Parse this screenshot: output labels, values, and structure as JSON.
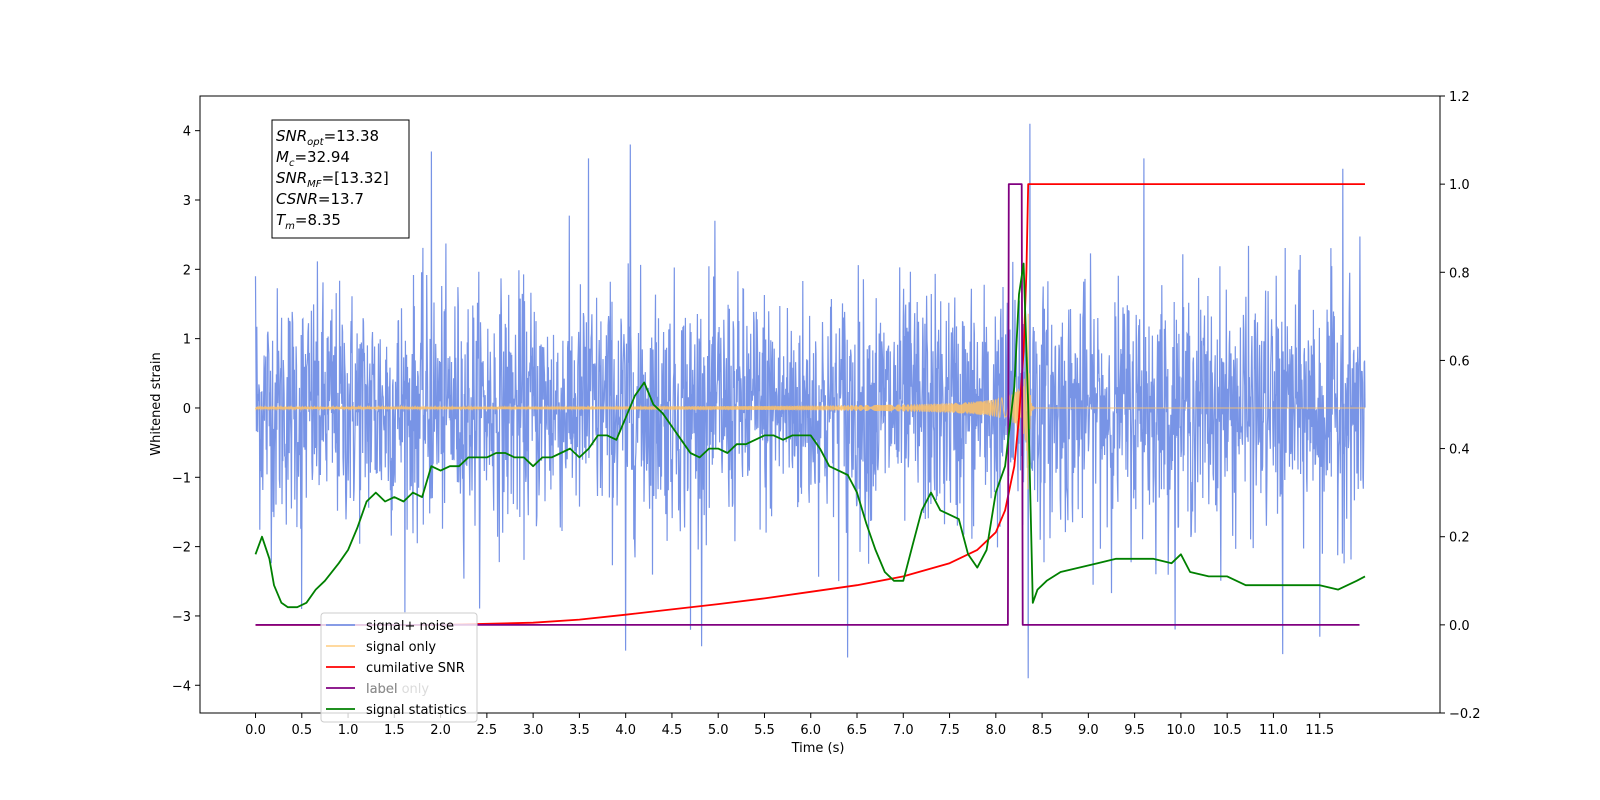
{
  "chart_data": {
    "type": "line",
    "xlabel": "Time (s)",
    "ylabel": "Whitened strain",
    "xlim": [
      -0.6,
      12.8
    ],
    "ylim": [
      -4.4,
      4.5
    ],
    "y2lim": [
      -0.2,
      1.2
    ],
    "xticks": [
      "0.0",
      "0.5",
      "1.0",
      "1.5",
      "2.0",
      "2.5",
      "3.0",
      "3.5",
      "4.0",
      "4.5",
      "5.0",
      "5.5",
      "6.0",
      "6.5",
      "7.0",
      "7.5",
      "8.0",
      "8.5",
      "9.0",
      "9.5",
      "10.0",
      "10.5",
      "11.0",
      "11.5"
    ],
    "yticks": [
      "-4",
      "-3",
      "-2",
      "-1",
      "0",
      "1",
      "2",
      "3",
      "4"
    ],
    "y2ticks": [
      "-0.2",
      "0.0",
      "0.2",
      "0.4",
      "0.6",
      "0.8",
      "1.0",
      "1.2"
    ],
    "legend_position": "lower-left",
    "annotation": {
      "lines": [
        {
          "base": "SNR",
          "sub": "opt",
          "value": "=13.38"
        },
        {
          "base": "M",
          "sub": "c",
          "value": "=32.94"
        },
        {
          "base": "SNR",
          "sub": "MF",
          "value": "=[13.32]"
        },
        {
          "base": "CSNR",
          "sub": "",
          "value": "=13.7"
        },
        {
          "base": "T",
          "sub": "m",
          "value": "=8.35"
        }
      ]
    },
    "series": [
      {
        "name": "signal+ noise",
        "axis": "left",
        "color": "#7894e6",
        "description_range": [
          -3.9,
          4.1
        ],
        "peaks": [
          [
            0.0,
            1.9
          ],
          [
            1.9,
            3.7
          ],
          [
            3.6,
            3.6
          ],
          [
            4.05,
            3.8
          ],
          [
            8.37,
            4.1
          ],
          [
            9.6,
            3.6
          ],
          [
            11.75,
            3.45
          ],
          [
            4.0,
            -3.5
          ],
          [
            6.4,
            -3.6
          ],
          [
            8.35,
            -3.95
          ],
          [
            11.1,
            -3.55
          ],
          [
            11.5,
            -3.3
          ],
          [
            4.7,
            -3.2
          ],
          [
            0.5,
            -2.9
          ]
        ],
        "noise_std": 0.85,
        "x_range": [
          0.0,
          11.99
        ]
      },
      {
        "name": "signal only",
        "axis": "left",
        "color": "#ffc266",
        "x_range": [
          0.0,
          11.99
        ],
        "chirp": {
          "merger_time": 8.35,
          "peak_amplitude": 1.4,
          "ringdown_end": 8.42
        }
      },
      {
        "name": "cumilative SNR",
        "axis": "right",
        "color": "#ff0000",
        "x": [
          0.0,
          1.0,
          2.0,
          3.0,
          3.5,
          4.0,
          4.5,
          5.0,
          5.5,
          6.0,
          6.5,
          7.0,
          7.5,
          7.8,
          8.0,
          8.1,
          8.2,
          8.25,
          8.3,
          8.33,
          8.35,
          11.99
        ],
        "y": [
          0.0,
          0.0,
          0.0,
          0.005,
          0.012,
          0.023,
          0.035,
          0.047,
          0.06,
          0.075,
          0.09,
          0.11,
          0.14,
          0.17,
          0.21,
          0.26,
          0.36,
          0.47,
          0.62,
          0.8,
          1.0,
          1.0
        ]
      },
      {
        "name": "label",
        "axis": "right",
        "color": "#800080",
        "x": [
          0.0,
          8.13,
          8.14,
          8.28,
          8.29,
          11.93
        ],
        "y": [
          0.0,
          0.0,
          1.0,
          1.0,
          0.0,
          0.0
        ]
      },
      {
        "name": "label only",
        "axis": "right",
        "color": "#cccccc",
        "legend_only": true
      },
      {
        "name": "signal statistics",
        "axis": "right",
        "color": "#008000",
        "x": [
          0.0,
          0.07,
          0.15,
          0.2,
          0.28,
          0.35,
          0.45,
          0.55,
          0.65,
          0.75,
          0.9,
          1.0,
          1.1,
          1.2,
          1.3,
          1.4,
          1.5,
          1.6,
          1.7,
          1.8,
          1.9,
          2.0,
          2.1,
          2.2,
          2.3,
          2.4,
          2.5,
          2.6,
          2.7,
          2.8,
          2.9,
          3.0,
          3.1,
          3.2,
          3.3,
          3.4,
          3.5,
          3.6,
          3.7,
          3.8,
          3.9,
          4.0,
          4.1,
          4.2,
          4.3,
          4.4,
          4.5,
          4.6,
          4.7,
          4.8,
          4.9,
          5.0,
          5.1,
          5.2,
          5.3,
          5.4,
          5.5,
          5.6,
          5.7,
          5.8,
          5.9,
          6.0,
          6.1,
          6.2,
          6.3,
          6.4,
          6.5,
          6.6,
          6.7,
          6.8,
          6.9,
          7.0,
          7.1,
          7.2,
          7.3,
          7.4,
          7.5,
          7.6,
          7.7,
          7.8,
          7.9,
          8.0,
          8.1,
          8.2,
          8.25,
          8.3,
          8.35,
          8.4,
          8.45,
          8.55,
          8.7,
          8.9,
          9.1,
          9.3,
          9.5,
          9.7,
          9.9,
          10.0,
          10.1,
          10.3,
          10.5,
          10.7,
          10.9,
          11.1,
          11.3,
          11.5,
          11.7,
          11.9,
          11.99
        ],
        "y": [
          0.16,
          0.2,
          0.15,
          0.09,
          0.05,
          0.04,
          0.04,
          0.05,
          0.08,
          0.1,
          0.14,
          0.17,
          0.22,
          0.28,
          0.3,
          0.28,
          0.29,
          0.28,
          0.3,
          0.29,
          0.36,
          0.35,
          0.36,
          0.36,
          0.38,
          0.38,
          0.38,
          0.39,
          0.39,
          0.38,
          0.38,
          0.36,
          0.38,
          0.38,
          0.39,
          0.4,
          0.38,
          0.4,
          0.43,
          0.43,
          0.42,
          0.47,
          0.52,
          0.55,
          0.5,
          0.48,
          0.45,
          0.42,
          0.39,
          0.38,
          0.4,
          0.4,
          0.39,
          0.41,
          0.41,
          0.42,
          0.43,
          0.43,
          0.42,
          0.43,
          0.43,
          0.43,
          0.4,
          0.36,
          0.35,
          0.34,
          0.3,
          0.23,
          0.17,
          0.12,
          0.1,
          0.1,
          0.18,
          0.26,
          0.3,
          0.26,
          0.25,
          0.24,
          0.16,
          0.13,
          0.17,
          0.3,
          0.36,
          0.54,
          0.75,
          0.82,
          0.5,
          0.05,
          0.08,
          0.1,
          0.12,
          0.13,
          0.14,
          0.15,
          0.15,
          0.15,
          0.14,
          0.16,
          0.12,
          0.11,
          0.11,
          0.09,
          0.09,
          0.09,
          0.09,
          0.09,
          0.08,
          0.1,
          0.11
        ]
      }
    ]
  }
}
